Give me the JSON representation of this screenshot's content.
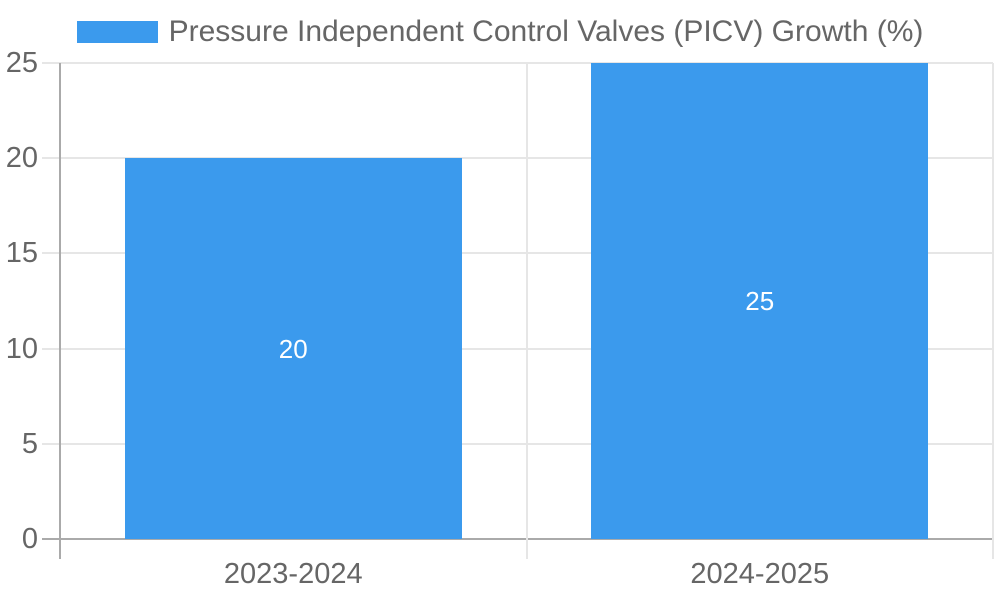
{
  "colors": {
    "bar": "#3B9AED",
    "text": "#666666",
    "grid": "#e6e6e6",
    "axis": "#aaaaaa",
    "value_text": "#ffffff",
    "background": "#ffffff"
  },
  "legend": {
    "label": "Pressure Independent Control Valves (PICV) Growth (%)"
  },
  "chart_data": {
    "type": "bar",
    "title": "Pressure Independent Control Valves (PICV) Growth (%)",
    "categories": [
      "2023-2024",
      "2024-2025"
    ],
    "series": [
      {
        "name": "Pressure Independent Control Valves (PICV) Growth (%)",
        "values": [
          20,
          25
        ]
      }
    ],
    "values": [
      20,
      25
    ],
    "value_labels_inside_bars": true,
    "xlabel": "",
    "ylabel": "",
    "ylim": [
      0,
      25
    ],
    "yticks": [
      0,
      5,
      10,
      15,
      20,
      25
    ],
    "grid": true,
    "legend_position": "top"
  }
}
